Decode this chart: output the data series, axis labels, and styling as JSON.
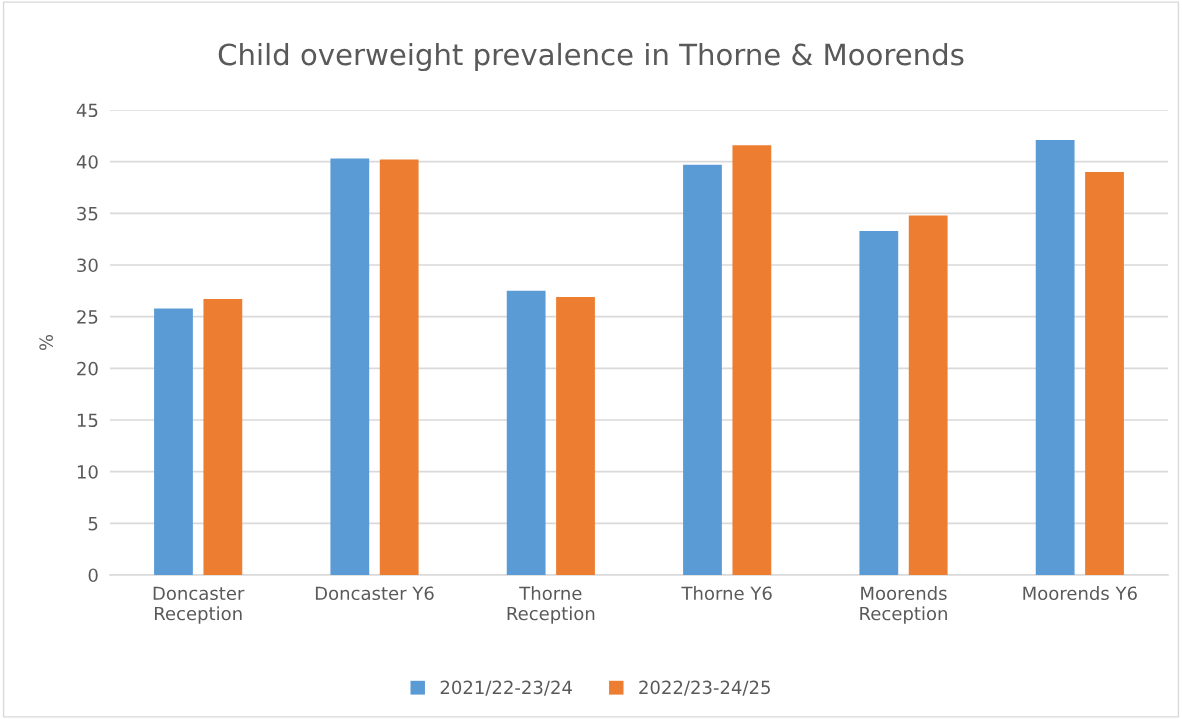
{
  "chart_data": {
    "type": "bar",
    "title": "Child overweight prevalence in Thorne & Moorends",
    "ylabel": "%",
    "categories": [
      "Doncaster\nReception",
      "Doncaster Y6",
      "Thorne\nReception",
      "Thorne Y6",
      "Moorends\nReception",
      "Moorends Y6"
    ],
    "series": [
      {
        "name": "2021/22-23/24",
        "color": "#5b9bd5",
        "values": [
          25.8,
          40.3,
          27.5,
          39.7,
          33.3,
          42.1
        ]
      },
      {
        "name": "2022/23-24/25",
        "color": "#ed7d31",
        "values": [
          26.7,
          40.2,
          26.9,
          41.6,
          34.8,
          39.0
        ]
      }
    ],
    "ylim": [
      0,
      45
    ],
    "yticks": [
      0,
      5,
      10,
      15,
      20,
      25,
      30,
      35,
      40,
      45
    ],
    "grid": "y",
    "legend": "bottom"
  }
}
